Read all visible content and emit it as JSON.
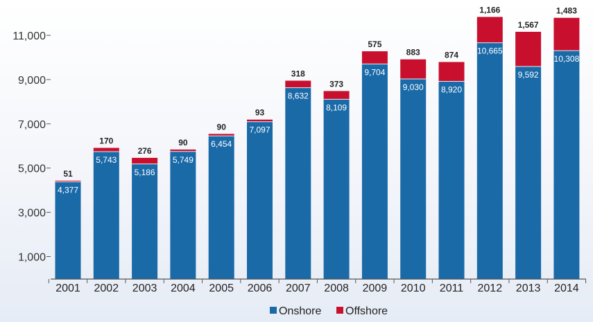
{
  "chart_data": {
    "type": "bar",
    "stacked": true,
    "title": "",
    "xlabel": "",
    "ylabel": "",
    "ylim": [
      0,
      12000
    ],
    "yticks": [
      1000,
      3000,
      5000,
      7000,
      9000,
      11000
    ],
    "ytick_labels": [
      "1,000",
      "3,000",
      "5,000",
      "7,000",
      "9,000",
      "11,000"
    ],
    "categories": [
      "2001",
      "2002",
      "2003",
      "2004",
      "2005",
      "2006",
      "2007",
      "2008",
      "2009",
      "2010",
      "2011",
      "2012",
      "2013",
      "2014"
    ],
    "series": [
      {
        "name": "Onshore",
        "color": "#1a6aa8",
        "values": [
          4377,
          5743,
          5186,
          5749,
          6454,
          7097,
          8632,
          8109,
          9704,
          9030,
          8920,
          10665,
          9592,
          10308
        ],
        "labels": [
          "4,377",
          "5,743",
          "5,186",
          "5,749",
          "6,454",
          "7,097",
          "8,632",
          "8,109",
          "9,704",
          "9,030",
          "8,920",
          "10,665",
          "9,592",
          "10,308"
        ]
      },
      {
        "name": "Offshore",
        "color": "#c8102e",
        "values": [
          51,
          170,
          276,
          90,
          90,
          93,
          318,
          373,
          575,
          883,
          874,
          1166,
          1567,
          1483
        ],
        "labels": [
          "51",
          "170",
          "276",
          "90",
          "90",
          "93",
          "318",
          "373",
          "575",
          "883",
          "874",
          "1,166",
          "1,567",
          "1,483"
        ]
      }
    ],
    "legend": {
      "position": "bottom-center",
      "entries": [
        "Onshore",
        "Offshore"
      ]
    },
    "grid": false
  }
}
